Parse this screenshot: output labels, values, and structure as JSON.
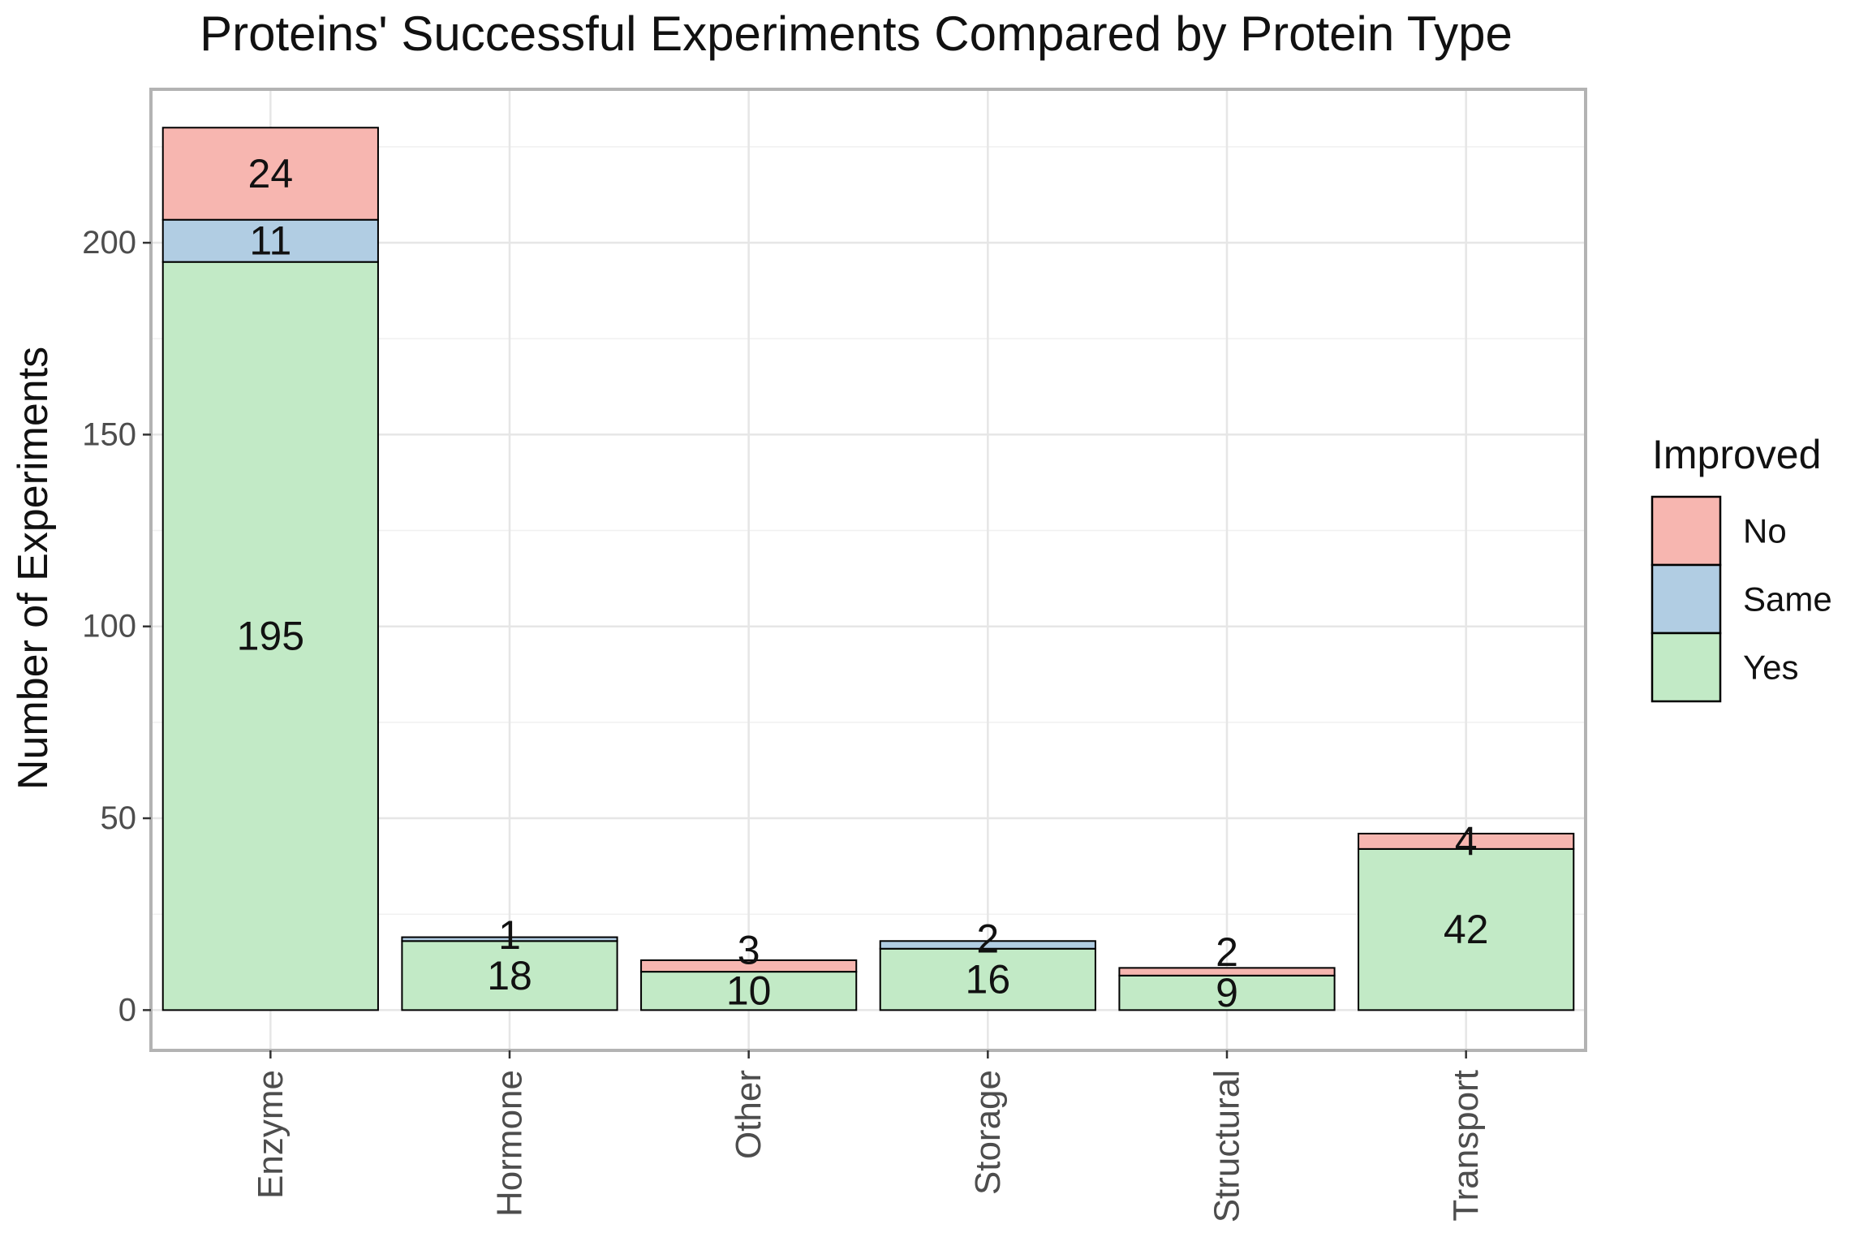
{
  "chart_data": {
    "type": "bar",
    "stacked": true,
    "title": "Proteins' Successful Experiments Compared by Protein Type",
    "xlabel": "",
    "ylabel": "Number of Experiments",
    "ylim": [
      -10.5,
      240
    ],
    "yticks": [
      0,
      50,
      100,
      150,
      200
    ],
    "ytick_labels": [
      "0",
      "50",
      "100",
      "150",
      "200"
    ],
    "grid": true,
    "categories": [
      "Enzyme",
      "Hormone",
      "Other",
      "Storage",
      "Structural",
      "Transport"
    ],
    "series": [
      {
        "name": "Yes",
        "color": "#C2EAC6",
        "values": [
          195,
          18,
          10,
          16,
          9,
          42
        ]
      },
      {
        "name": "Same",
        "color": "#B1CDE3",
        "values": [
          11,
          1,
          0,
          2,
          0,
          0
        ]
      },
      {
        "name": "No",
        "color": "#F7B6B0",
        "values": [
          24,
          0,
          3,
          0,
          2,
          4
        ]
      }
    ],
    "data_labels": [
      [
        {
          "text": "195",
          "series": "Yes"
        },
        {
          "text": "11",
          "series": "Same"
        },
        {
          "text": "24",
          "series": "No"
        }
      ],
      [
        {
          "text": "18",
          "series": "Yes"
        },
        {
          "text": "1",
          "series": "Same"
        }
      ],
      [
        {
          "text": "10",
          "series": "Yes"
        },
        {
          "text": "3",
          "series": "No"
        }
      ],
      [
        {
          "text": "16",
          "series": "Yes"
        },
        {
          "text": "2",
          "series": "Same"
        }
      ],
      [
        {
          "text": "9",
          "series": "Yes"
        },
        {
          "text": "2",
          "series": "No"
        }
      ],
      [
        {
          "text": "42",
          "series": "Yes"
        },
        {
          "text": "4",
          "series": "No"
        }
      ]
    ],
    "legend": {
      "title": "Improved",
      "position": "right",
      "entries": [
        {
          "label": "No",
          "color": "#F7B6B0"
        },
        {
          "label": "Same",
          "color": "#B1CDE3"
        },
        {
          "label": "Yes",
          "color": "#C2EAC6"
        }
      ]
    }
  }
}
